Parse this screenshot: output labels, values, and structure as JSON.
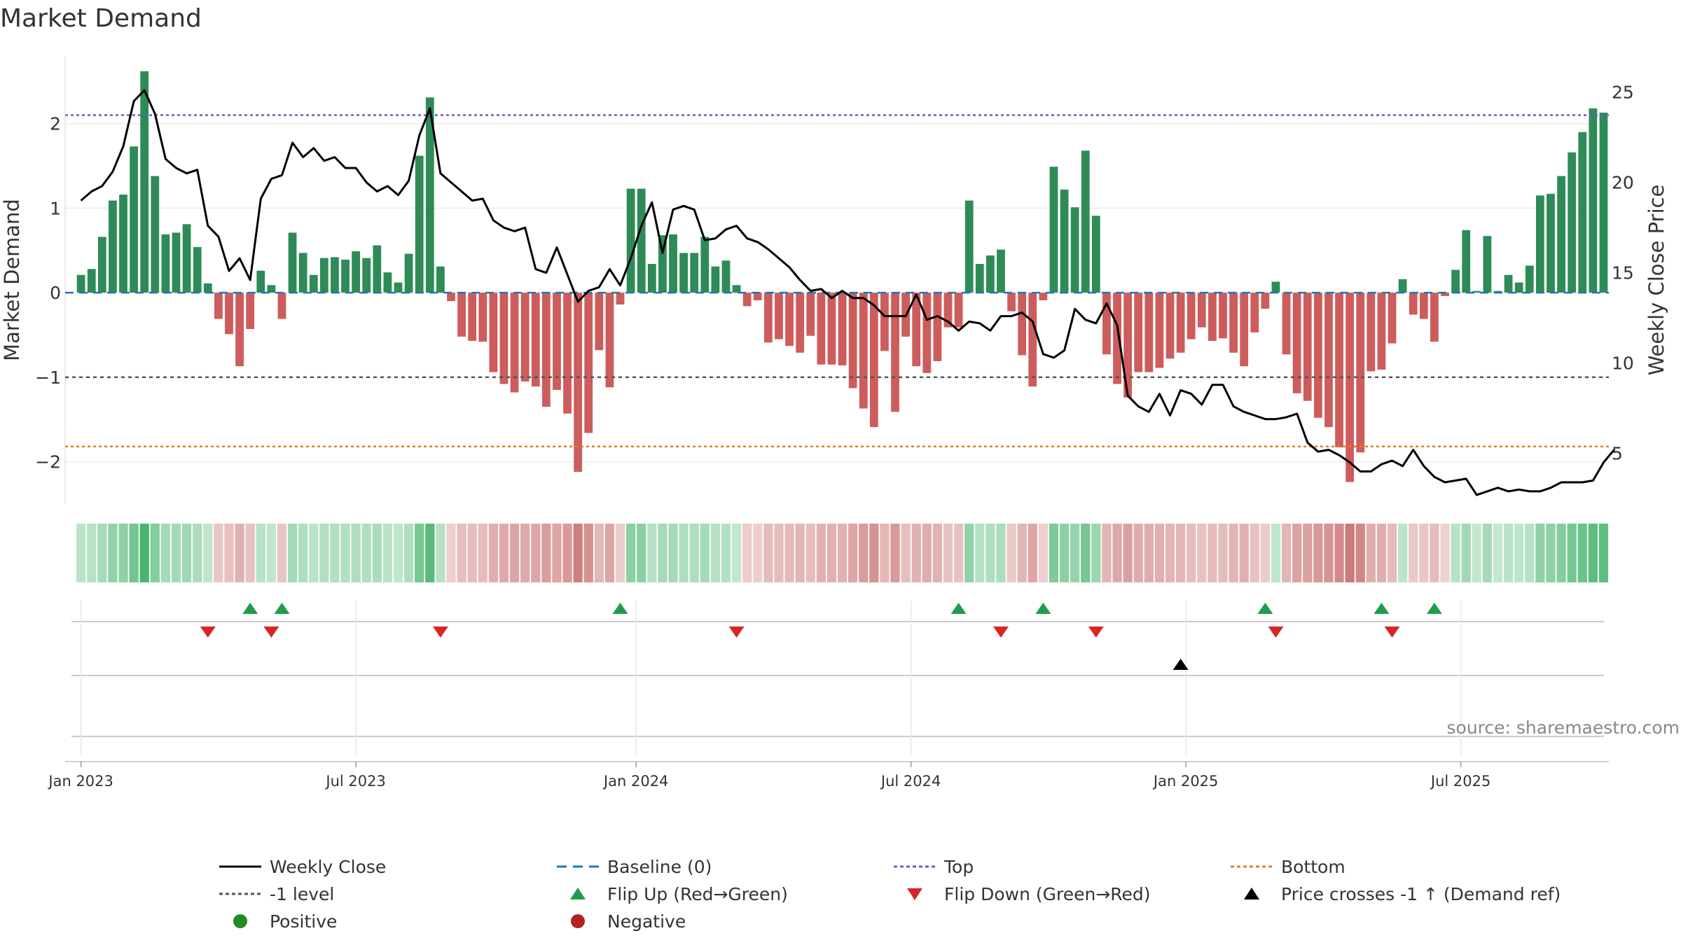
{
  "title": "Market Demand",
  "source": "source: sharemaestro.com",
  "colors": {
    "pos": "#2e8b57",
    "neg": "#cd5c5c",
    "price": "#000000",
    "top": "#6a5acd",
    "bottom": "#e67e22",
    "level": "#555555",
    "baseline": "#1f77b4",
    "flip_up": "#1e9e4a",
    "flip_down": "#d62728"
  },
  "chart_data": {
    "type": "bar",
    "title": "Market Demand",
    "ylabel": "Market Demand",
    "y2label": "Weekly Close Price",
    "ylim": [
      -2.5,
      2.8
    ],
    "y2lim": [
      2.2,
      27.0
    ],
    "yticks": [
      "2",
      "1",
      "0",
      "−1",
      "−2"
    ],
    "yticks_values": [
      2,
      1,
      0,
      -1,
      -2
    ],
    "y2ticks": [
      "25",
      "20",
      "15",
      "10",
      "5"
    ],
    "y2ticks_values": [
      25,
      20,
      15,
      10,
      5
    ],
    "xlim": [
      -1.5,
      144.5
    ],
    "x_ticks": [
      {
        "label": "Jan 2023",
        "week": 0
      },
      {
        "label": "Jul 2023",
        "week": 26
      },
      {
        "label": "Jan 2024",
        "week": 52.5
      },
      {
        "label": "Jul 2024",
        "week": 78.5
      },
      {
        "label": "Jan 2025",
        "week": 104.5
      },
      {
        "label": "Jul 2025",
        "week": 130.5
      }
    ],
    "reference_lines": {
      "top": 2.1,
      "bottom": -1.82,
      "minus1_level": -1,
      "baseline": 0
    },
    "demand": [
      0.21,
      0.28,
      0.66,
      1.09,
      1.16,
      1.73,
      2.62,
      1.38,
      0.69,
      0.71,
      0.81,
      0.54,
      0.11,
      -0.31,
      -0.49,
      -0.87,
      -0.43,
      0.26,
      0.09,
      -0.31,
      0.71,
      0.47,
      0.21,
      0.41,
      0.42,
      0.39,
      0.49,
      0.41,
      0.56,
      0.24,
      0.12,
      0.46,
      1.62,
      2.31,
      0.31,
      -0.1,
      -0.52,
      -0.57,
      -0.58,
      -0.94,
      -1.08,
      -1.18,
      -1.05,
      -1.11,
      -1.35,
      -1.15,
      -1.43,
      -2.12,
      -1.66,
      -0.68,
      -1.12,
      -0.14,
      1.23,
      1.23,
      0.34,
      0.68,
      0.69,
      0.47,
      0.47,
      0.66,
      0.31,
      0.38,
      0.09,
      -0.16,
      -0.09,
      -0.59,
      -0.55,
      -0.63,
      -0.71,
      -0.51,
      -0.85,
      -0.85,
      -0.86,
      -1.13,
      -1.37,
      -1.59,
      -0.69,
      -1.41,
      -0.52,
      -0.87,
      -0.95,
      -0.81,
      -0.41,
      -0.41,
      1.09,
      0.34,
      0.44,
      0.51,
      -0.22,
      -0.74,
      -1.11,
      -0.09,
      1.49,
      1.22,
      1.01,
      1.68,
      0.91,
      -0.73,
      -1.08,
      -1.24,
      -0.94,
      -0.94,
      -0.89,
      -0.78,
      -0.71,
      -0.55,
      -0.41,
      -0.57,
      -0.54,
      -0.71,
      -0.87,
      -0.47,
      -0.19,
      0.13,
      -0.73,
      -1.19,
      -1.28,
      -1.48,
      -1.59,
      -1.83,
      -2.24,
      -1.89,
      -0.93,
      -0.91,
      -0.6,
      0.16,
      -0.26,
      -0.31,
      -0.58,
      -0.04,
      0.27,
      0.74,
      0.02,
      0.67,
      0.02,
      0.21,
      0.12,
      0.32,
      1.15,
      1.17,
      1.38,
      1.66,
      1.9,
      2.18,
      2.13
    ],
    "price": [
      19.0,
      19.5,
      19.8,
      20.6,
      22.0,
      24.5,
      25.1,
      23.8,
      21.3,
      20.8,
      20.5,
      20.7,
      17.6,
      17.0,
      15.1,
      15.8,
      14.6,
      19.1,
      20.2,
      20.4,
      22.2,
      21.4,
      21.9,
      21.2,
      21.4,
      20.8,
      20.8,
      20.0,
      19.5,
      19.8,
      19.3,
      20.1,
      22.6,
      24.1,
      20.5,
      20.0,
      19.5,
      19.0,
      19.1,
      17.9,
      17.5,
      17.3,
      17.5,
      15.2,
      15.0,
      16.4,
      14.9,
      13.4,
      14.0,
      14.2,
      15.2,
      14.3,
      15.8,
      17.6,
      18.9,
      16.1,
      18.5,
      18.7,
      18.5,
      16.8,
      16.9,
      17.4,
      17.6,
      16.9,
      16.7,
      16.3,
      15.8,
      15.3,
      14.6,
      14.0,
      14.1,
      13.6,
      14.0,
      13.6,
      13.6,
      13.2,
      12.6,
      12.6,
      12.6,
      13.8,
      12.4,
      12.6,
      12.3,
      11.8,
      12.3,
      12.2,
      11.8,
      12.6,
      12.6,
      12.8,
      12.3,
      10.5,
      10.3,
      10.7,
      13.0,
      12.4,
      12.2,
      13.3,
      12.1,
      8.2,
      7.6,
      7.3,
      8.3,
      7.1,
      8.5,
      8.3,
      7.7,
      8.8,
      8.8,
      7.6,
      7.3,
      7.1,
      6.9,
      6.9,
      7.0,
      7.2,
      5.6,
      5.1,
      5.2,
      4.9,
      4.5,
      4.0,
      4.0,
      4.4,
      4.6,
      4.3,
      5.2,
      4.3,
      3.7,
      3.4,
      3.5,
      3.6,
      2.7,
      2.9,
      3.1,
      2.9,
      3.0,
      2.9,
      2.9,
      3.1,
      3.4,
      3.4,
      3.4,
      3.5,
      4.5,
      5.2
    ],
    "flip_up_weeks": [
      16,
      19,
      51,
      83,
      91,
      112,
      123,
      128
    ],
    "flip_down_weeks": [
      12,
      18,
      34,
      62,
      87,
      96,
      113,
      124
    ],
    "price_cross_weeks": [
      104
    ]
  },
  "legend": [
    {
      "label": "Weekly Close",
      "kind": "line-solid",
      "color": "#000000"
    },
    {
      "label": "Baseline (0)",
      "kind": "line-dash",
      "color": "#1f77b4"
    },
    {
      "label": "Top",
      "kind": "line-dot",
      "color": "#6a5acd"
    },
    {
      "label": "Bottom",
      "kind": "line-dot",
      "color": "#e67e22"
    },
    {
      "label": "-1 level",
      "kind": "line-dot",
      "color": "#555555"
    },
    {
      "label": "Flip Up (Red→Green)",
      "kind": "tri-up",
      "color": "#1e9e4a"
    },
    {
      "label": "Flip Down (Green→Red)",
      "kind": "tri-down",
      "color": "#d62728"
    },
    {
      "label": "Price crosses -1 ↑ (Demand ref)",
      "kind": "tri-up",
      "color": "#000000"
    },
    {
      "label": "Positive",
      "kind": "dot",
      "color": "#228b22"
    },
    {
      "label": "Negative",
      "kind": "dot",
      "color": "#b22222"
    }
  ]
}
